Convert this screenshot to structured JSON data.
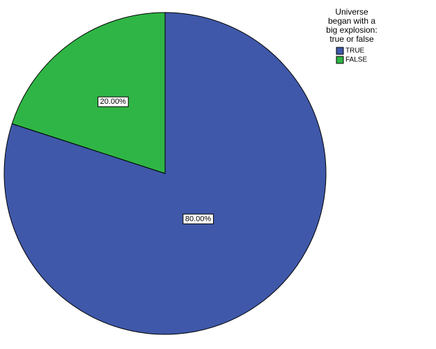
{
  "chart_data": {
    "type": "pie",
    "legend_title": "Universe began with a big explosion: true or false",
    "categories": [
      "TRUE",
      "FALSE"
    ],
    "values": [
      80,
      20
    ],
    "value_labels": [
      "80.00%",
      "20.00%"
    ],
    "colors": [
      "#3f58a9",
      "#2fb545"
    ],
    "legend": "top-right"
  }
}
